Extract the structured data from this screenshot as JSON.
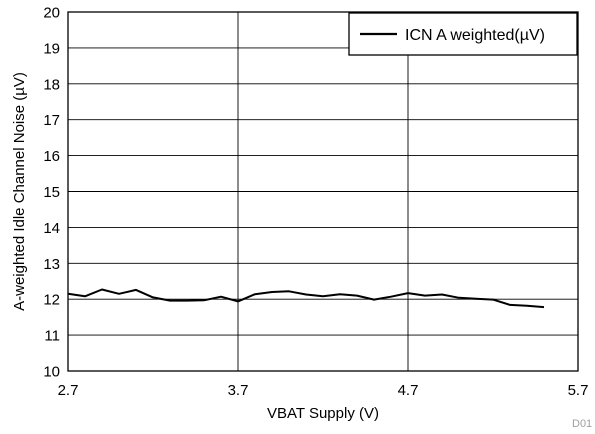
{
  "chart_data": {
    "type": "line",
    "xlabel": "VBAT Supply (V)",
    "ylabel": "A-weighted Idle Channel Noise (µV)",
    "xlim": [
      2.7,
      5.7
    ],
    "ylim": [
      10,
      20
    ],
    "xticks": [
      2.7,
      3.7,
      4.7,
      5.7
    ],
    "xtick_labels": [
      "2.7",
      "3.7",
      "4.7",
      "5.7"
    ],
    "yticks": [
      10,
      11,
      12,
      13,
      14,
      15,
      16,
      17,
      18,
      19,
      20
    ],
    "ytick_labels": [
      "10",
      "11",
      "12",
      "13",
      "14",
      "15",
      "16",
      "17",
      "18",
      "19",
      "20"
    ],
    "grid": true,
    "legend_position": "top-right",
    "series": [
      {
        "name": "ICN A weighted(µV)",
        "color": "#000000",
        "x": [
          2.7,
          2.8,
          2.9,
          3.0,
          3.1,
          3.2,
          3.3,
          3.4,
          3.5,
          3.6,
          3.7,
          3.8,
          3.9,
          4.0,
          4.1,
          4.2,
          4.3,
          4.4,
          4.5,
          4.6,
          4.7,
          4.8,
          4.9,
          5.0,
          5.1,
          5.2,
          5.3,
          5.4,
          5.5
        ],
        "values": [
          12.15,
          12.08,
          12.27,
          12.15,
          12.26,
          12.05,
          11.96,
          11.96,
          11.97,
          12.07,
          11.94,
          12.14,
          12.2,
          12.22,
          12.13,
          12.08,
          12.14,
          12.1,
          11.99,
          12.07,
          12.17,
          12.1,
          12.13,
          12.04,
          12.01,
          11.99,
          11.84,
          11.82,
          11.78
        ]
      }
    ],
    "footnote": "D01"
  }
}
